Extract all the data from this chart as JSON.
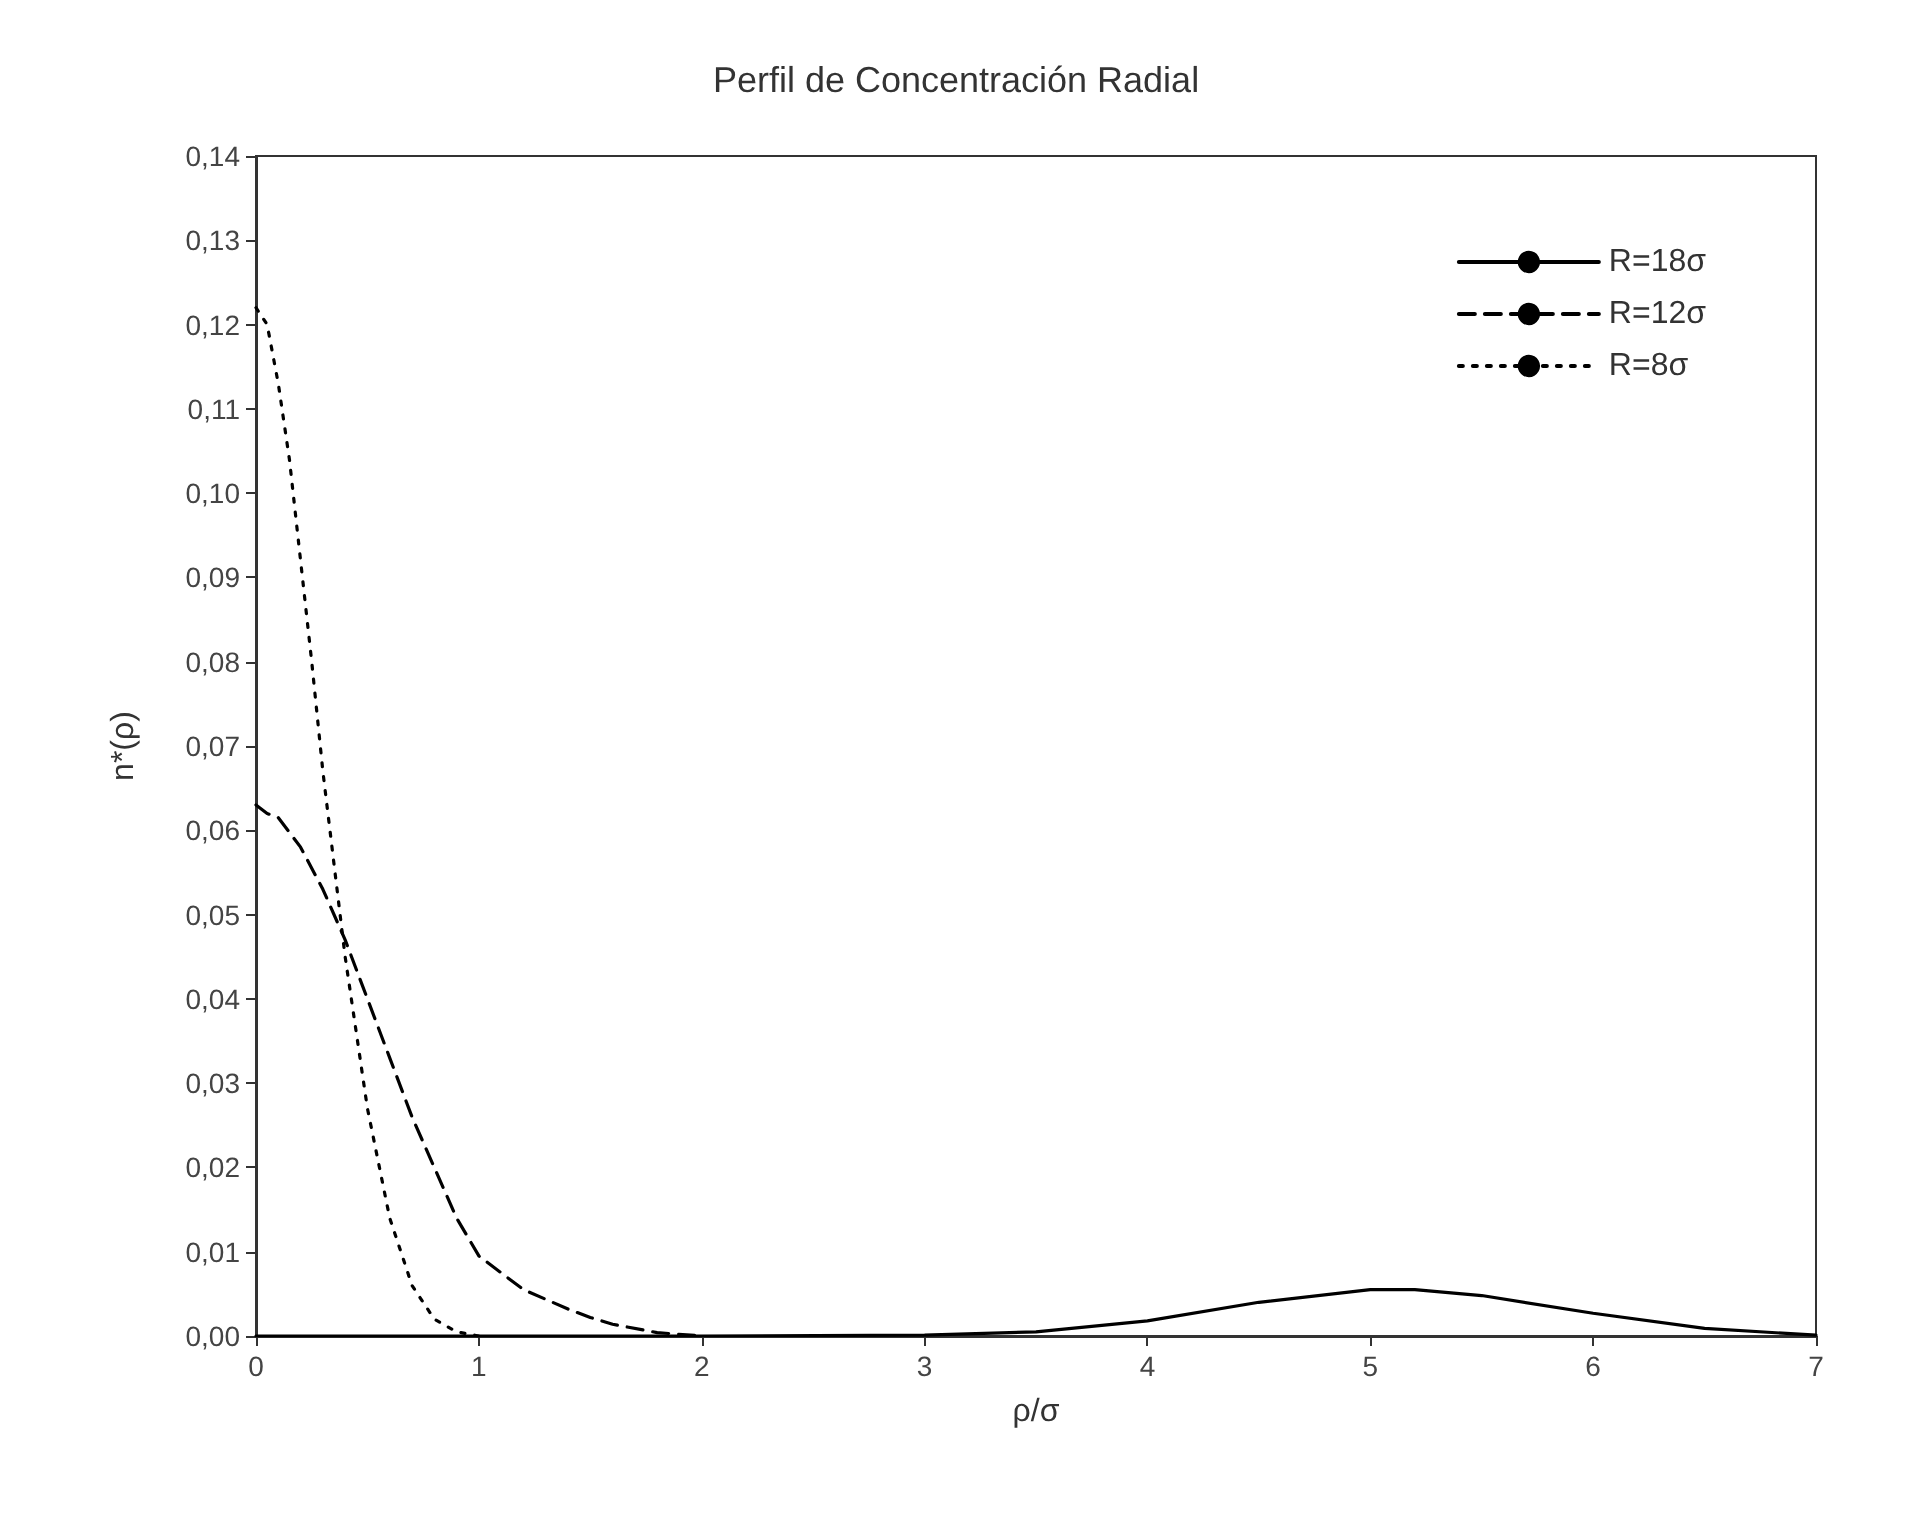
{
  "chart_data": {
    "type": "line",
    "title": "Perfil de Concentración Radial",
    "xlabel": "ρ/σ",
    "ylabel": "n*(ρ)",
    "xlim": [
      0,
      7
    ],
    "xticks": [
      0,
      1,
      2,
      3,
      4,
      5,
      6,
      7
    ],
    "ylim": [
      0,
      0.14
    ],
    "yticks": [
      {
        "value": 0,
        "label": "0,00"
      },
      {
        "value": 0.01,
        "label": "0,01"
      },
      {
        "value": 0.02,
        "label": "0,02"
      },
      {
        "value": 0.03,
        "label": "0,03"
      },
      {
        "value": 0.04,
        "label": "0,04"
      },
      {
        "value": 0.05,
        "label": "0,05"
      },
      {
        "value": 0.06,
        "label": "0,06"
      },
      {
        "value": 0.07,
        "label": "0,07"
      },
      {
        "value": 0.08,
        "label": "0,08"
      },
      {
        "value": 0.09,
        "label": "0,09"
      },
      {
        "value": 0.1,
        "label": "0,10"
      },
      {
        "value": 0.11,
        "label": "0,11"
      },
      {
        "value": 0.12,
        "label": "0,12"
      },
      {
        "value": 0.13,
        "label": "0,13"
      },
      {
        "value": 0.14,
        "label": "0,14"
      }
    ],
    "grid": false,
    "legend": "top right",
    "marker": "none",
    "series": [
      {
        "name": "R=18σ",
        "color": "#000000",
        "line_style": "solid",
        "x": [
          0,
          1,
          2,
          3,
          3.5,
          4,
          4.5,
          5,
          5.2,
          5.5,
          6,
          6.5,
          7
        ],
        "values": [
          0,
          0,
          0,
          0.0001,
          0.0005,
          0.0018,
          0.004,
          0.0055,
          0.0055,
          0.0048,
          0.0027,
          0.0009,
          0.0001
        ]
      },
      {
        "name": "R=12σ",
        "color": "#000000",
        "line_style": "dashed",
        "x": [
          0,
          0.05,
          0.1,
          0.2,
          0.3,
          0.4,
          0.5,
          0.6,
          0.7,
          0.8,
          0.9,
          1.0,
          1.2,
          1.4,
          1.5,
          1.6,
          1.8,
          2.0
        ],
        "values": [
          0.063,
          0.062,
          0.0615,
          0.058,
          0.053,
          0.047,
          0.04,
          0.033,
          0.026,
          0.02,
          0.014,
          0.0095,
          0.0055,
          0.0032,
          0.0022,
          0.0014,
          0.0004,
          0
        ]
      },
      {
        "name": "R=8σ",
        "color": "#000000",
        "line_style": "dotted",
        "x": [
          0,
          0.05,
          0.1,
          0.15,
          0.2,
          0.25,
          0.3,
          0.35,
          0.4,
          0.5,
          0.6,
          0.7,
          0.8,
          0.9,
          1.0
        ],
        "values": [
          0.122,
          0.12,
          0.113,
          0.104,
          0.092,
          0.08,
          0.067,
          0.056,
          0.045,
          0.027,
          0.014,
          0.006,
          0.002,
          0.0005,
          0
        ]
      }
    ]
  }
}
